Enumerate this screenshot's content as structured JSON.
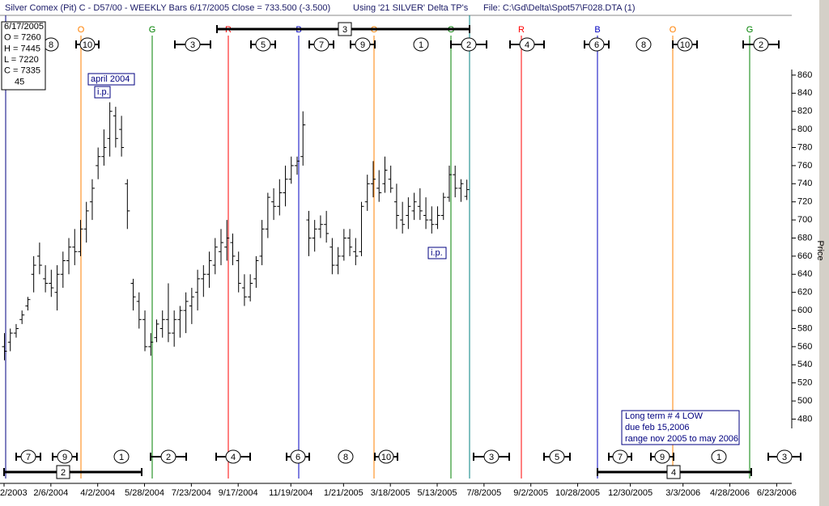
{
  "header": {
    "title": "Silver Comex (Pit) C - D57/00  - WEEKLY Bars  6/17/2005 Close = 733.500 (-3.500)",
    "using": "Using '21 SILVER' Delta TP's",
    "file": "File: C:\\Gd\\Delta\\Spot57\\F028.DTA (1)"
  },
  "info_box": [
    "6/17/2005",
    "O = 7260",
    "H = 7445",
    "L = 7220",
    "C = 7335",
    "45"
  ],
  "cycle_letters": [
    "O",
    "G",
    "R",
    "B",
    "O",
    "G",
    "R",
    "B",
    "O",
    "G"
  ],
  "top_markers": [
    "8",
    "10",
    "3",
    "5",
    "7",
    "9",
    "1",
    "2",
    "4",
    "6",
    "8",
    "10",
    "2"
  ],
  "bottom_markers": [
    "7",
    "9",
    "1",
    "2",
    "4",
    "6",
    "8",
    "10",
    "3",
    "5",
    "7",
    "9",
    "1",
    "3"
  ],
  "period_boxes": [
    "3",
    "2",
    "4"
  ],
  "annotations": {
    "april": "april  2004",
    "ip1": "i.p.",
    "ip2": "i.p.",
    "note": [
      "Long term # 4 LOW",
      "due feb 15,2006",
      "range nov 2005 to may 2006"
    ]
  },
  "chart_data": {
    "type": "ohlc",
    "y_label": "Price",
    "ylim": [
      409,
      926
    ],
    "yticks": [
      480,
      500,
      520,
      540,
      560,
      580,
      600,
      620,
      640,
      660,
      680,
      700,
      720,
      740,
      760,
      780,
      800,
      820,
      840,
      860
    ],
    "color": "#000000",
    "categories": [
      "2/2003",
      null,
      null,
      null,
      null,
      null,
      null,
      null,
      "2/6/2004",
      null,
      null,
      null,
      null,
      null,
      null,
      null,
      "4/2/2004",
      null,
      null,
      null,
      null,
      null,
      null,
      null,
      "5/28/2004",
      null,
      null,
      null,
      null,
      null,
      null,
      null,
      "7/23/2004",
      null,
      null,
      null,
      null,
      null,
      null,
      null,
      "9/17/2004",
      null,
      null,
      null,
      null,
      null,
      null,
      null,
      null,
      "11/19/2004",
      null,
      null,
      null,
      null,
      null,
      null,
      null,
      null,
      "1/21/2005",
      null,
      null,
      null,
      null,
      null,
      null,
      null,
      "3/18/2005",
      null,
      null,
      null,
      null,
      null,
      null,
      null,
      "5/13/2005",
      null,
      null,
      null,
      null,
      null,
      null,
      null,
      "7/8/2005",
      null,
      null,
      null,
      null,
      null,
      null,
      null,
      "9/2/2005",
      null,
      null,
      null,
      null,
      null,
      null,
      null,
      "10/28/2005",
      null,
      null,
      null,
      null,
      null,
      null,
      null,
      null,
      "12/30/2005",
      null,
      null,
      null,
      null,
      null,
      null,
      null,
      null,
      "3/3/2006",
      null,
      null,
      null,
      null,
      null,
      null,
      null,
      "4/28/2006",
      null,
      null,
      null,
      null,
      null,
      null,
      null,
      "6/23/2006",
      null,
      null
    ],
    "values": [
      [
        560,
        575,
        545,
        555
      ],
      [
        565,
        580,
        555,
        575
      ],
      [
        575,
        585,
        570,
        580
      ],
      [
        590,
        600,
        585,
        595
      ],
      [
        605,
        615,
        600,
        612
      ],
      [
        640,
        660,
        620,
        650
      ],
      [
        660,
        675,
        640,
        650
      ],
      [
        635,
        650,
        620,
        630
      ],
      [
        630,
        645,
        615,
        625
      ],
      [
        620,
        650,
        600,
        640
      ],
      [
        640,
        665,
        625,
        655
      ],
      [
        655,
        680,
        640,
        670
      ],
      [
        670,
        690,
        650,
        665
      ],
      [
        665,
        700,
        660,
        690
      ],
      [
        690,
        720,
        675,
        710
      ],
      [
        720,
        745,
        700,
        735
      ],
      [
        760,
        780,
        745,
        770
      ],
      [
        770,
        800,
        760,
        780
      ],
      [
        790,
        830,
        770,
        820
      ],
      [
        815,
        825,
        780,
        790
      ],
      [
        800,
        815,
        770,
        780
      ],
      [
        740,
        745,
        690,
        710
      ],
      [
        630,
        635,
        600,
        615
      ],
      [
        610,
        620,
        580,
        590
      ],
      [
        590,
        600,
        555,
        560
      ],
      [
        560,
        575,
        550,
        565
      ],
      [
        570,
        590,
        565,
        585
      ],
      [
        580,
        600,
        570,
        590
      ],
      [
        590,
        630,
        565,
        575
      ],
      [
        575,
        600,
        560,
        590
      ],
      [
        590,
        605,
        570,
        600
      ],
      [
        600,
        620,
        575,
        610
      ],
      [
        605,
        625,
        585,
        615
      ],
      [
        620,
        645,
        600,
        635
      ],
      [
        635,
        650,
        615,
        640
      ],
      [
        640,
        665,
        625,
        655
      ],
      [
        650,
        680,
        640,
        670
      ],
      [
        665,
        690,
        650,
        675
      ],
      [
        670,
        700,
        655,
        680
      ],
      [
        675,
        685,
        650,
        660
      ],
      [
        655,
        665,
        620,
        630
      ],
      [
        625,
        640,
        605,
        615
      ],
      [
        615,
        640,
        610,
        630
      ],
      [
        635,
        660,
        625,
        655
      ],
      [
        660,
        700,
        650,
        690
      ],
      [
        690,
        730,
        680,
        725
      ],
      [
        720,
        735,
        700,
        715
      ],
      [
        715,
        745,
        705,
        730
      ],
      [
        730,
        760,
        715,
        745
      ],
      [
        745,
        770,
        740,
        760
      ],
      [
        760,
        770,
        750,
        765
      ],
      [
        770,
        820,
        760,
        805
      ],
      [
        700,
        710,
        660,
        680
      ],
      [
        680,
        700,
        665,
        690
      ],
      [
        690,
        705,
        680,
        695
      ],
      [
        695,
        710,
        675,
        685
      ],
      [
        670,
        680,
        640,
        650
      ],
      [
        650,
        670,
        640,
        660
      ],
      [
        660,
        690,
        655,
        680
      ],
      [
        680,
        690,
        660,
        670
      ],
      [
        665,
        680,
        650,
        660
      ],
      [
        665,
        720,
        660,
        715
      ],
      [
        720,
        750,
        710,
        740
      ],
      [
        740,
        765,
        725,
        745
      ],
      [
        735,
        755,
        720,
        730
      ],
      [
        740,
        770,
        730,
        755
      ],
      [
        745,
        760,
        730,
        735
      ],
      [
        720,
        740,
        690,
        705
      ],
      [
        700,
        720,
        685,
        695
      ],
      [
        705,
        725,
        690,
        715
      ],
      [
        710,
        730,
        700,
        720
      ],
      [
        715,
        735,
        700,
        710
      ],
      [
        705,
        725,
        690,
        700
      ],
      [
        700,
        715,
        685,
        695
      ],
      [
        695,
        715,
        690,
        705
      ],
      [
        705,
        730,
        700,
        725
      ],
      [
        725,
        760,
        720,
        750
      ],
      [
        750,
        760,
        725,
        735
      ],
      [
        735,
        745,
        720,
        740
      ],
      [
        726,
        744.5,
        722,
        733.5
      ],
      null,
      null,
      null,
      null,
      null,
      null,
      null,
      null,
      null,
      null,
      null,
      null,
      null,
      null,
      null,
      null,
      null,
      null,
      null,
      null,
      null,
      null,
      null,
      null,
      null,
      null,
      null,
      null,
      null,
      null,
      null,
      null,
      null,
      null,
      null,
      null,
      null,
      null,
      null,
      null,
      null,
      null,
      null,
      null,
      null,
      null,
      null,
      null,
      null,
      null,
      null,
      null,
      null,
      null,
      null
    ]
  }
}
